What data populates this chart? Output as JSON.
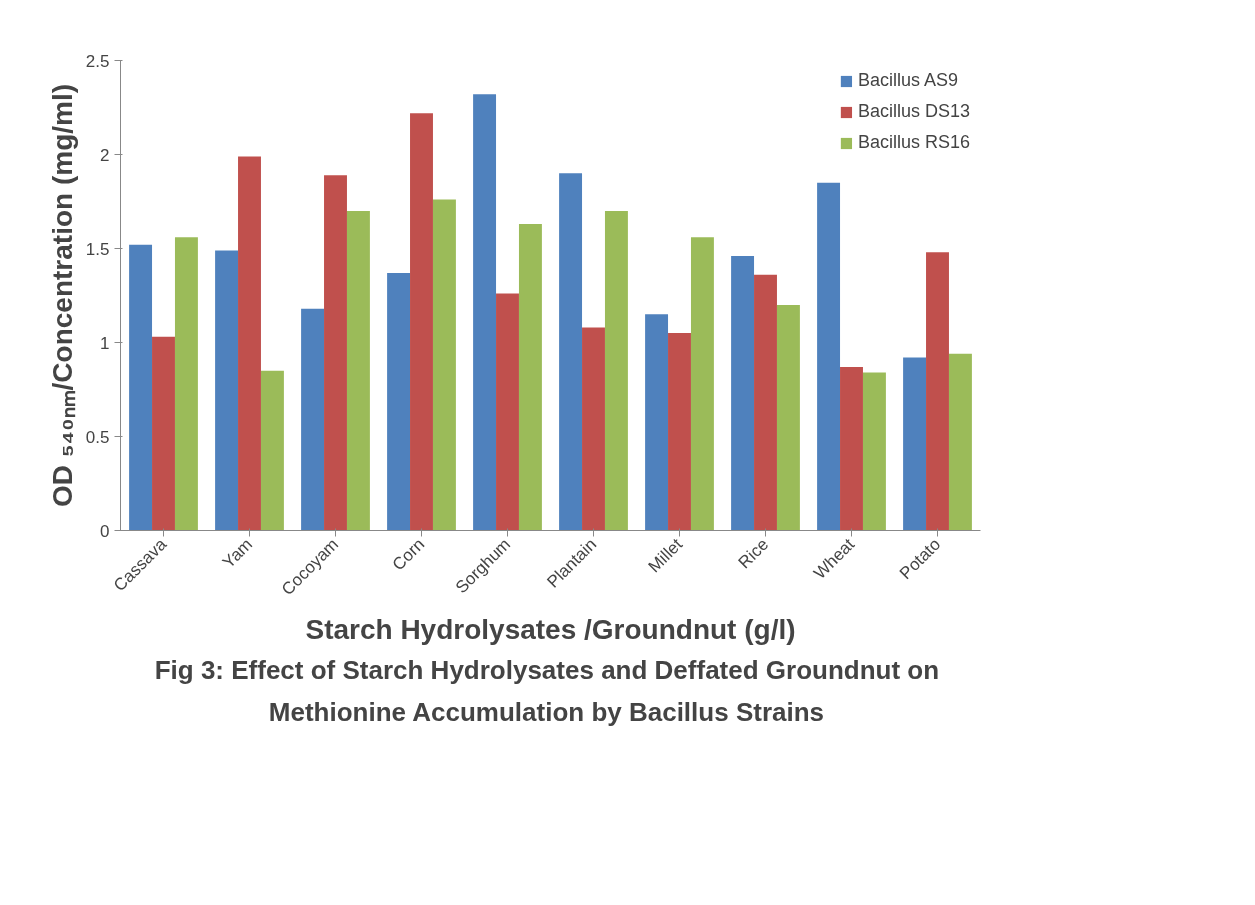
{
  "chart_data": {
    "type": "bar",
    "title": "Fig 3: Effect of Starch Hydrolysates  and Deffated Groundnut on\nMethionine Accumulation  by Bacillus Strains",
    "xlabel": "Starch Hydrolysates /Groundnut (g/l)",
    "ylabel": "OD ₅₄₀ₙₘ/Concentration (mg/ml)",
    "categories": [
      "Cassava",
      "Yam",
      "Cocoyam",
      "Corn",
      "Sorghum",
      "Plantain",
      "Millet",
      "Rice",
      "Wheat",
      "Potato"
    ],
    "series": [
      {
        "name": "Bacillus AS9",
        "color": "#4f81bd",
        "values": [
          1.52,
          1.49,
          1.18,
          1.37,
          2.32,
          1.9,
          1.15,
          1.46,
          1.85,
          0.92
        ]
      },
      {
        "name": "Bacillus DS13",
        "color": "#c0504d",
        "values": [
          1.03,
          1.99,
          1.89,
          2.22,
          1.26,
          1.08,
          1.05,
          1.36,
          0.87,
          1.48
        ]
      },
      {
        "name": "Bacillus RS16",
        "color": "#9bbb59",
        "values": [
          1.56,
          0.85,
          1.7,
          1.76,
          1.63,
          1.7,
          1.56,
          1.2,
          0.84,
          0.94
        ]
      }
    ],
    "ylim": [
      0,
      2.5
    ],
    "yticks": [
      0,
      0.5,
      1,
      1.5,
      2,
      2.5
    ],
    "grid": false,
    "legend": "top right"
  }
}
